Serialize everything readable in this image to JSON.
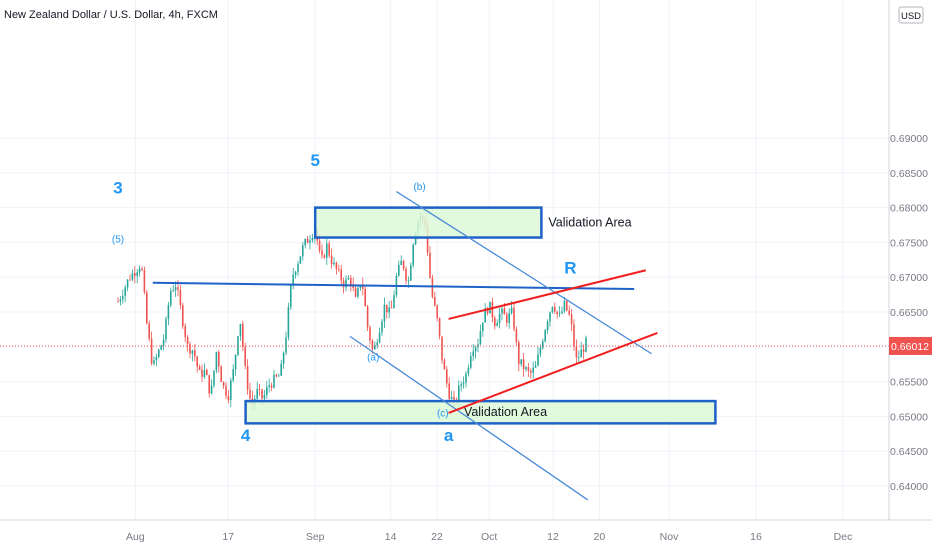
{
  "header": {
    "title": "New Zealand Dollar / U.S. Dollar, 4h, FXCM"
  },
  "price_scale": {
    "currency_button": "USD",
    "current_price": "0.66012",
    "colors": {
      "price_tag": "#ef5350"
    }
  },
  "chart_data": {
    "type": "candlestick",
    "symbol": "NZDUSD",
    "interval": "4h",
    "source": "FXCM",
    "ylim": [
      0.6365,
      0.693
    ],
    "y_ticks": [
      "0.64000",
      "0.64500",
      "0.65000",
      "0.65500",
      "0.66000",
      "0.66500",
      "0.67000",
      "0.67500",
      "0.68000",
      "0.68500",
      "0.69000"
    ],
    "x_ticks": [
      "Aug",
      "17",
      "Sep",
      "14",
      "22",
      "Oct",
      "12",
      "20",
      "Nov",
      "16",
      "Dec"
    ],
    "last_price": 0.66012,
    "colors": {
      "up": "#26a69a",
      "down": "#ef5350",
      "annotation": "#2196f3",
      "channel": "#f01e1e"
    },
    "price_path": [
      [
        "Jul 29",
        0.6665
      ],
      [
        "Jul 31",
        0.67
      ],
      [
        "Aug 2",
        0.672
      ],
      [
        "Aug 3",
        0.663
      ],
      [
        "Aug 4",
        0.657
      ],
      [
        "Aug 6",
        0.6615
      ],
      [
        "Aug 7",
        0.668
      ],
      [
        "Aug 8",
        0.669
      ],
      [
        "Aug 10",
        0.66
      ],
      [
        "Aug 11",
        0.6595
      ],
      [
        "Aug 12",
        0.656
      ],
      [
        "Aug 13",
        0.6565
      ],
      [
        "Aug 14",
        0.653
      ],
      [
        "Aug 15",
        0.6595
      ],
      [
        "Aug 16",
        0.6545
      ],
      [
        "Aug 17",
        0.653
      ],
      [
        "Aug 18",
        0.657
      ],
      [
        "Aug 19",
        0.6645
      ],
      [
        "Aug 20",
        0.656
      ],
      [
        "Aug 21",
        0.6515
      ],
      [
        "Aug 22",
        0.6535
      ],
      [
        "Aug 23",
        0.6525
      ],
      [
        "Aug 24",
        0.6545
      ],
      [
        "Aug 26",
        0.656
      ],
      [
        "Aug 27",
        0.662
      ],
      [
        "Aug 28",
        0.67
      ],
      [
        "Aug 30",
        0.6745
      ],
      [
        "Sep 1",
        0.677
      ],
      [
        "Sep 2",
        0.672
      ],
      [
        "Sep 3",
        0.6745
      ],
      [
        "Sep 4",
        0.672
      ],
      [
        "Sep 6",
        0.669
      ],
      [
        "Sep 7",
        0.67
      ],
      [
        "Sep 8",
        0.6665
      ],
      [
        "Sep 9",
        0.67
      ],
      [
        "Sep 10",
        0.663
      ],
      [
        "Sep 11",
        0.659
      ],
      [
        "Sep 12",
        0.6625
      ],
      [
        "Sep 13",
        0.666
      ],
      [
        "Sep 14",
        0.6645
      ],
      [
        "Sep 15",
        0.67
      ],
      [
        "Sep 16",
        0.6725
      ],
      [
        "Sep 17",
        0.669
      ],
      [
        "Sep 18",
        0.676
      ],
      [
        "Sep 19",
        0.679
      ],
      [
        "Sep 20",
        0.6775
      ],
      [
        "Sep 21",
        0.668
      ],
      [
        "Sep 22",
        0.664
      ],
      [
        "Sep 23",
        0.6575
      ],
      [
        "Sep 24",
        0.6535
      ],
      [
        "Sep 25",
        0.6515
      ],
      [
        "Sep 26",
        0.6545
      ],
      [
        "Sep 27",
        0.656
      ],
      [
        "Sep 28",
        0.66
      ],
      [
        "Sep 29",
        0.6605
      ],
      [
        "Sep 30",
        0.6645
      ],
      [
        "Oct 1",
        0.666
      ],
      [
        "Oct 2",
        0.6635
      ],
      [
        "Oct 3",
        0.665
      ],
      [
        "Oct 4",
        0.664
      ],
      [
        "Oct 5",
        0.665
      ],
      [
        "Oct 6",
        0.658
      ],
      [
        "Oct 7",
        0.657
      ],
      [
        "Oct 8",
        0.656
      ],
      [
        "Oct 9",
        0.657
      ],
      [
        "Oct 10",
        0.6605
      ],
      [
        "Oct 11",
        0.664
      ],
      [
        "Oct 12",
        0.6665
      ],
      [
        "Oct 13",
        0.664
      ],
      [
        "Oct 14",
        0.666
      ],
      [
        "Oct 15",
        0.664
      ],
      [
        "Oct 16",
        0.658
      ],
      [
        "Oct 17",
        0.6595
      ],
      [
        "Oct 18",
        0.661
      ]
    ],
    "annotations": {
      "wave_labels": [
        {
          "text": "3",
          "date": "Jul 29",
          "price": 0.682
        },
        {
          "text": "(5)",
          "date": "Jul 29",
          "price": 0.675
        },
        {
          "text": "5",
          "date": "Sep 1",
          "price": 0.686
        },
        {
          "text": "4",
          "date": "Aug 20",
          "price": 0.6465
        },
        {
          "text": "(a)",
          "date": "Sep 11",
          "price": 0.658
        },
        {
          "text": "(b)",
          "date": "Sep 19",
          "price": 0.6825
        },
        {
          "text": "(c)",
          "date": "Sep 23",
          "price": 0.65
        },
        {
          "text": "a",
          "date": "Sep 24",
          "price": 0.6465
        },
        {
          "text": "R",
          "date": "Oct 15",
          "price": 0.6705
        }
      ],
      "validation_zones": [
        {
          "label": "Validation Area",
          "from": "Sep 1",
          "to": "Oct 10",
          "low": 0.6757,
          "high": 0.68
        },
        {
          "label": "Validation Area",
          "from": "Aug 20",
          "to": "Nov 9",
          "low": 0.649,
          "high": 0.6522
        }
      ],
      "trend_lines": [
        {
          "name": "horizontal-resistance",
          "from": [
            "Aug 4",
            0.6692
          ],
          "to": [
            "Oct 26",
            0.6683
          ]
        },
        {
          "name": "upper-falling-line",
          "from": [
            "Sep 15",
            0.6823
          ],
          "to": [
            "Oct 29",
            0.659
          ]
        },
        {
          "name": "lower-falling-line",
          "from": [
            "Sep 7",
            0.6615
          ],
          "to": [
            "Oct 18",
            0.638
          ]
        },
        {
          "name": "channel-top",
          "from": [
            "Sep 24",
            0.664
          ],
          "to": [
            "Oct 28",
            0.671
          ]
        },
        {
          "name": "channel-bottom",
          "from": [
            "Sep 24",
            0.6505
          ],
          "to": [
            "Oct 30",
            0.662
          ]
        }
      ],
      "last_price_line": 0.66012
    }
  }
}
